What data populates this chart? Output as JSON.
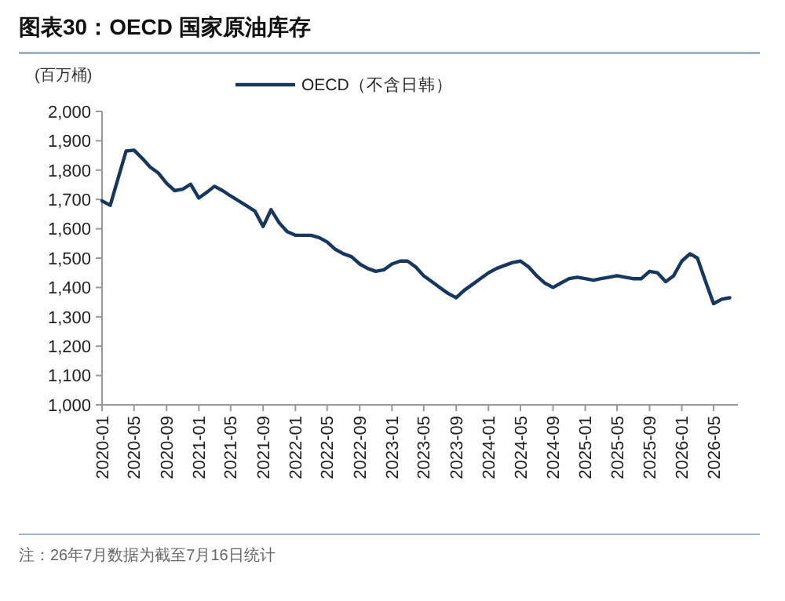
{
  "chart_data": {
    "type": "line",
    "title": "图表30：OECD 国家原油库存",
    "ylabel": "(百万桶)",
    "annotations": [
      "注：26年7月数据为截至7月16日统计"
    ],
    "x": [
      "2020-01",
      "2020-02",
      "2020-03",
      "2020-04",
      "2020-05",
      "2020-06",
      "2020-07",
      "2020-08",
      "2020-09",
      "2020-10",
      "2020-11",
      "2020-12",
      "2021-01",
      "2021-02",
      "2021-03",
      "2021-04",
      "2021-05",
      "2021-06",
      "2021-07",
      "2021-08",
      "2021-09",
      "2021-10",
      "2021-11",
      "2021-12",
      "2022-01",
      "2022-02",
      "2022-03",
      "2022-04",
      "2022-05",
      "2022-06",
      "2022-07",
      "2022-08",
      "2022-09",
      "2022-10",
      "2022-11",
      "2022-12",
      "2023-01",
      "2023-02",
      "2023-03",
      "2023-04",
      "2023-05",
      "2023-06",
      "2023-07",
      "2023-08",
      "2023-09",
      "2023-10",
      "2023-11",
      "2023-12",
      "2024-01",
      "2024-02",
      "2024-03",
      "2024-04",
      "2024-05",
      "2024-06",
      "2024-07",
      "2024-08",
      "2024-09",
      "2024-10",
      "2024-11",
      "2024-12",
      "2025-01",
      "2025-02",
      "2025-03",
      "2025-04",
      "2025-05",
      "2025-06",
      "2025-07",
      "2025-08",
      "2025-09",
      "2025-10",
      "2025-11",
      "2025-12",
      "2026-01",
      "2026-02",
      "2026-03",
      "2026-04",
      "2026-05",
      "2026-06",
      "2026-07"
    ],
    "series": [
      {
        "name": "OECD（不含日韩）",
        "color": "#17375e",
        "values": [
          1695,
          1680,
          1770,
          1865,
          1868,
          1840,
          1810,
          1790,
          1755,
          1730,
          1735,
          1752,
          1705,
          1725,
          1745,
          1730,
          1712,
          1695,
          1678,
          1660,
          1608,
          1665,
          1620,
          1590,
          1578,
          1578,
          1578,
          1570,
          1555,
          1530,
          1515,
          1505,
          1480,
          1465,
          1455,
          1460,
          1480,
          1490,
          1490,
          1470,
          1440,
          1420,
          1400,
          1380,
          1365,
          1390,
          1410,
          1430,
          1450,
          1465,
          1475,
          1485,
          1490,
          1470,
          1440,
          1415,
          1400,
          1415,
          1430,
          1435,
          1430,
          1425,
          1430,
          1435,
          1440,
          1435,
          1430,
          1430,
          1455,
          1450,
          1420,
          1440,
          1490,
          1515,
          1500,
          1420,
          1345,
          1360,
          1365
        ]
      }
    ],
    "xlim": [
      "2020-01",
      "2026-08"
    ],
    "xticks": [
      "2020-01",
      "2020-05",
      "2020-09",
      "2021-01",
      "2021-05",
      "2021-09",
      "2022-01",
      "2022-05",
      "2022-09",
      "2023-01",
      "2023-05",
      "2023-09",
      "2024-01",
      "2024-05",
      "2024-09",
      "2025-01",
      "2025-05",
      "2025-09",
      "2026-01",
      "2026-05"
    ],
    "ylim": [
      1000,
      2000
    ],
    "yticks": [
      {
        "value": 1000,
        "label": "1,000"
      },
      {
        "value": 1100,
        "label": "1,100"
      },
      {
        "value": 1200,
        "label": "1,200"
      },
      {
        "value": 1300,
        "label": "1,300"
      },
      {
        "value": 1400,
        "label": "1,400"
      },
      {
        "value": 1500,
        "label": "1,500"
      },
      {
        "value": 1600,
        "label": "1,600"
      },
      {
        "value": 1700,
        "label": "1,700"
      },
      {
        "value": 1800,
        "label": "1,800"
      },
      {
        "value": 1900,
        "label": "1,900"
      },
      {
        "value": 2000,
        "label": "2,000"
      }
    ],
    "legend": "top",
    "grid": false,
    "marker": "none",
    "line_style": "solid"
  }
}
